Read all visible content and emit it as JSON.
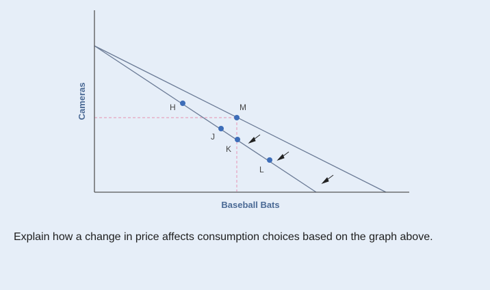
{
  "diagram": {
    "x_axis_label": "Baseball Bats",
    "y_axis_label": "Cameras",
    "points": [
      {
        "id": "H",
        "label": "H"
      },
      {
        "id": "M",
        "label": "M"
      },
      {
        "id": "J",
        "label": "J"
      },
      {
        "id": "K",
        "label": "K"
      },
      {
        "id": "L",
        "label": "L"
      }
    ],
    "colors": {
      "axis": "#555555",
      "budget_line": "#6a7a95",
      "point": "#3d6db8",
      "dashed_guide": "#e7a3bf",
      "axis_label": "#4b6a95"
    }
  },
  "question": {
    "text": "Explain how a change in price affects consumption choices based on the graph above."
  }
}
